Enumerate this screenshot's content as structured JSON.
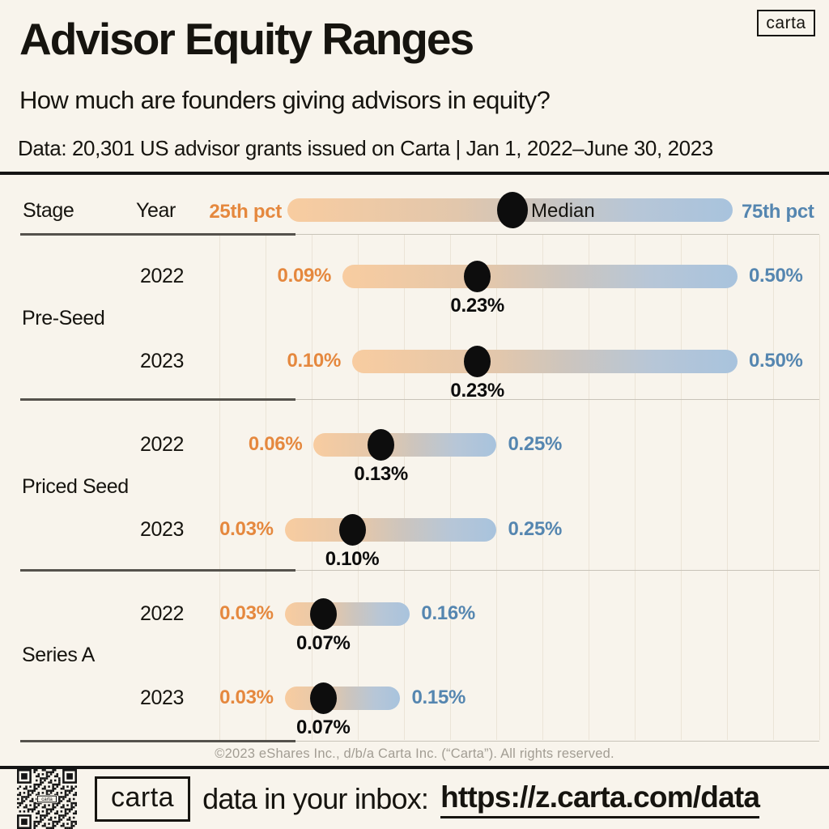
{
  "header": {
    "title": "Advisor Equity Ranges",
    "subtitle": "How much are founders giving advisors in equity?",
    "data_note": "Data: 20,301 US advisor grants issued on Carta | Jan 1, 2022–June 30, 2023",
    "logo_text": "carta"
  },
  "legend": {
    "stage_label": "Stage",
    "year_label": "Year",
    "p25_label": "25th pct",
    "median_label": "Median",
    "p75_label": "75th pct"
  },
  "chart_data": {
    "type": "bar",
    "subtype": "horizontal-dumbbell-range",
    "unit": "% equity",
    "legend": [
      "25th pct",
      "Median",
      "75th pct"
    ],
    "grid": "vertical, every 0.05%",
    "xlim": [
      0,
      0.6
    ],
    "stages": [
      {
        "label": "Pre-Seed"
      },
      {
        "label": "Priced Seed"
      },
      {
        "label": "Series A"
      }
    ],
    "rows": [
      {
        "stage": "Pre-Seed",
        "year": "2022",
        "p25": 0.09,
        "median": 0.23,
        "p75": 0.5,
        "p25_label": "0.09%",
        "median_label": "0.23%",
        "p75_label": "0.50%"
      },
      {
        "stage": "Pre-Seed",
        "year": "2023",
        "p25": 0.1,
        "median": 0.23,
        "p75": 0.5,
        "p25_label": "0.10%",
        "median_label": "0.23%",
        "p75_label": "0.50%"
      },
      {
        "stage": "Priced Seed",
        "year": "2022",
        "p25": 0.06,
        "median": 0.13,
        "p75": 0.25,
        "p25_label": "0.06%",
        "median_label": "0.13%",
        "p75_label": "0.25%"
      },
      {
        "stage": "Priced Seed",
        "year": "2023",
        "p25": 0.03,
        "median": 0.1,
        "p75": 0.25,
        "p25_label": "0.03%",
        "median_label": "0.10%",
        "p75_label": "0.25%"
      },
      {
        "stage": "Series A",
        "year": "2022",
        "p25": 0.03,
        "median": 0.07,
        "p75": 0.16,
        "p25_label": "0.03%",
        "median_label": "0.07%",
        "p75_label": "0.16%"
      },
      {
        "stage": "Series A",
        "year": "2023",
        "p25": 0.03,
        "median": 0.07,
        "p75": 0.15,
        "p25_label": "0.03%",
        "median_label": "0.07%",
        "p75_label": "0.15%"
      }
    ]
  },
  "footer": {
    "copyright": "©2023 eShares Inc., d/b/a Carta Inc. (“Carta”). All rights reserved.",
    "logo_text": "carta",
    "cta_text": "data in your inbox:",
    "url": "https://z.carta.com/data"
  },
  "colors": {
    "background": "#F8F4EC",
    "ink": "#16140F",
    "orange": "#E5883E",
    "blue": "#5586B0",
    "median_dot": "#0D0D0D",
    "bar_gradient": [
      "#F8CCA0",
      "#E2C7AC",
      "#CDC5BD",
      "#B7C6D7",
      "#A8C3DD"
    ],
    "gridline": "#EBE4D7",
    "copyright_gray": "#A29D93"
  }
}
